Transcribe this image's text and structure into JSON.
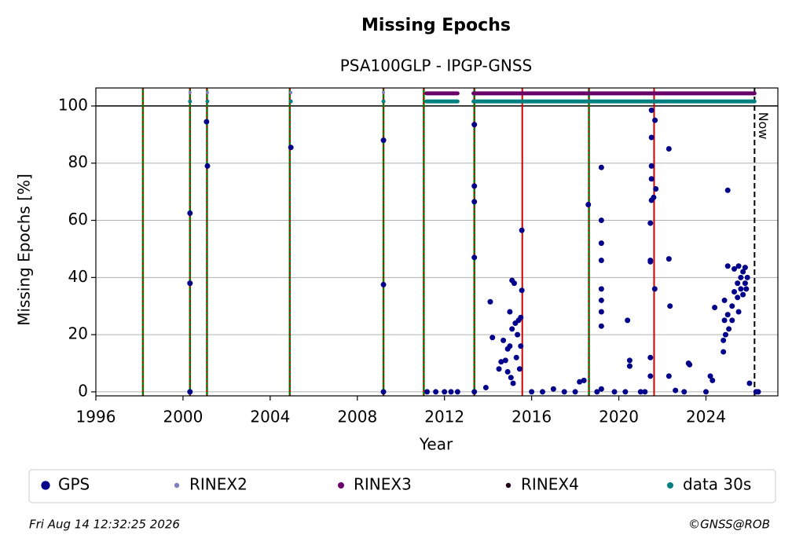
{
  "chart_data": {
    "type": "scatter",
    "title": "Missing Epochs",
    "subtitle": "PSA100GLP - IPGP-GNSS",
    "xlabel": "Year",
    "ylabel": "Missing Epochs [%]",
    "xlim": [
      1996,
      2027.3
    ],
    "ylim": [
      -1.4,
      106.3
    ],
    "xticks": [
      1996,
      2000,
      2004,
      2008,
      2012,
      2016,
      2020,
      2024
    ],
    "yticks": [
      0,
      20,
      40,
      60,
      80,
      100
    ],
    "grid": true,
    "reference_line": 100,
    "events_green_red": [
      1998.16,
      2000.32,
      2001.1,
      2004.9,
      2009.2,
      2011.05,
      2013.37,
      2018.63
    ],
    "events_red": [
      2015.57,
      2021.62
    ],
    "now": {
      "x": 2026.23,
      "label": "Now"
    },
    "series": [
      {
        "name": "GPS",
        "color": "#00008b",
        "marker_size": 3.5,
        "x": [
          2000.32,
          2000.32,
          2000.32,
          2001.08,
          2001.12,
          2004.95,
          2009.2,
          2009.2,
          2009.2,
          2011.2,
          2011.6,
          2012.0,
          2012.3,
          2012.6,
          2013.37,
          2013.37,
          2013.37,
          2013.37,
          2013.37,
          2013.9,
          2014.1,
          2014.2,
          2014.5,
          2014.6,
          2014.7,
          2014.8,
          2014.9,
          2014.9,
          2015.0,
          2015.0,
          2015.05,
          2015.1,
          2015.1,
          2015.15,
          2015.2,
          2015.25,
          2015.3,
          2015.35,
          2015.4,
          2015.45,
          2015.5,
          2015.5,
          2015.55,
          2015.55,
          2016.0,
          2016.5,
          2017.0,
          2017.5,
          2018.0,
          2018.2,
          2018.4,
          2018.6,
          2019.0,
          2019.2,
          2019.2,
          2019.2,
          2019.2,
          2019.2,
          2019.2,
          2019.2,
          2019.2,
          2019.2,
          2019.8,
          2020.3,
          2020.4,
          2020.5,
          2020.5,
          2021.0,
          2021.2,
          2021.5,
          2021.5,
          2021.5,
          2021.5,
          2021.5,
          2021.45,
          2021.45,
          2021.45,
          2021.45,
          2021.45,
          2021.66,
          2021.7,
          2021.6,
          2021.65,
          2022.3,
          2022.3,
          2022.35,
          2022.3,
          2022.6,
          2023.0,
          2023.2,
          2023.25,
          2024.0,
          2024.2,
          2024.3,
          2024.4,
          2024.8,
          2024.8,
          2024.85,
          2024.85,
          2024.9,
          2025.0,
          2025.0,
          2025.0,
          2025.05,
          2025.2,
          2025.2,
          2025.3,
          2025.3,
          2025.45,
          2025.45,
          2025.5,
          2025.5,
          2025.6,
          2025.6,
          2025.7,
          2025.7,
          2025.8,
          2025.8,
          2025.85,
          2025.9,
          2026.0,
          2026.3,
          2026.4
        ],
        "values": [
          62.5,
          38,
          0,
          94.5,
          79,
          85.5,
          88,
          37.5,
          0,
          0,
          0,
          0,
          0,
          0,
          93.5,
          72,
          66.5,
          47,
          0,
          1.5,
          31.5,
          19,
          8,
          10.5,
          18,
          11,
          15,
          7,
          28,
          16,
          5,
          39,
          22,
          3,
          38,
          24,
          12,
          20,
          25,
          8,
          26,
          16,
          56.5,
          35.5,
          0,
          0,
          1,
          0,
          0,
          3.5,
          4,
          65.5,
          0,
          78.5,
          60,
          52,
          46,
          36,
          32,
          28,
          23,
          1,
          0,
          0,
          25,
          11,
          9,
          0,
          0,
          98.5,
          89,
          79,
          74.5,
          67,
          59,
          46,
          45.5,
          12,
          5.5,
          95,
          71,
          68,
          36,
          85,
          46.5,
          30,
          5.5,
          0.5,
          0,
          10,
          9.5,
          0,
          5.5,
          4,
          29.5,
          14,
          18,
          25,
          32,
          20,
          27,
          44,
          70.5,
          22,
          25,
          30,
          43,
          35,
          33,
          38,
          44,
          28,
          36,
          40,
          42,
          34,
          38,
          43.5,
          36,
          40,
          3,
          0,
          0
        ]
      },
      {
        "name": "RINEX2",
        "color": "#8080c0",
        "marker_size": 2,
        "x": [
          2000.32,
          2001.12,
          2004.95,
          2009.2
        ],
        "values": [
          104.7,
          104.7,
          104.7,
          104.7
        ]
      },
      {
        "name": "RINEX3",
        "color": "#6a006a",
        "marker_size": 2.5,
        "line_width": 5,
        "x": [
          2011.17,
          2012.6,
          null,
          2013.33,
          2026.23
        ],
        "values": [
          104.4,
          104.4,
          null,
          104.4,
          104.4
        ]
      },
      {
        "name": "RINEX4",
        "color": "#200018",
        "marker_size": 2,
        "x": [],
        "values": []
      },
      {
        "name": "data 30s",
        "color": "#008080",
        "marker_size": 2.5,
        "line_width": 5,
        "x": [
          2000.32,
          null,
          2001.12,
          null,
          2004.95,
          null,
          2009.2,
          null,
          2011.17,
          2012.6,
          null,
          2013.33,
          2026.23
        ],
        "values": [
          101.6,
          null,
          101.6,
          null,
          101.6,
          null,
          101.6,
          null,
          101.6,
          101.6,
          null,
          101.6,
          101.6
        ]
      }
    ],
    "timestamp": "Fri Aug 14 12:32:25 2026",
    "credit": "©GNSS@ROB"
  }
}
